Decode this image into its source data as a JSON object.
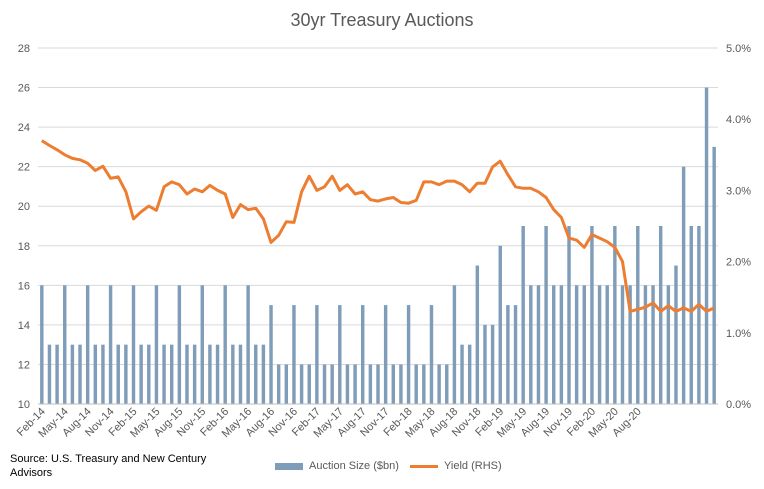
{
  "chart_data": {
    "type": "bar",
    "title": "30yr Treasury Auctions",
    "source": "Source: U.S. Treasury and New Century Advisors",
    "x_tick_labels": [
      "Feb-14",
      "May-14",
      "Aug-14",
      "Nov-14",
      "Feb-15",
      "May-15",
      "Aug-15",
      "Nov-15",
      "Feb-16",
      "May-16",
      "Aug-16",
      "Nov-16",
      "Feb-17",
      "May-17",
      "Aug-17",
      "Nov-17",
      "Feb-18",
      "May-18",
      "Aug-18",
      "Nov-18",
      "Feb-19",
      "May-19",
      "Aug-19",
      "Nov-19",
      "Feb-20",
      "May-20",
      "Aug-20"
    ],
    "y_left": {
      "ylim": [
        10,
        28
      ],
      "ticks": [
        "10",
        "12",
        "14",
        "16",
        "18",
        "20",
        "22",
        "24",
        "26",
        "28"
      ]
    },
    "y_right": {
      "ylim": [
        0.0,
        5.0
      ],
      "ticks": [
        "0.0%",
        "1.0%",
        "2.0%",
        "3.0%",
        "4.0%",
        "5.0%"
      ]
    },
    "series": [
      {
        "name": "Auction Size ($bn)",
        "type": "bar",
        "axis": "left",
        "color": "#7f9db9",
        "values": [
          16,
          13,
          13,
          16,
          13,
          13,
          16,
          13,
          13,
          16,
          13,
          13,
          16,
          13,
          13,
          16,
          13,
          13,
          16,
          13,
          13,
          16,
          13,
          13,
          16,
          13,
          13,
          16,
          13,
          13,
          15,
          12,
          12,
          15,
          12,
          12,
          15,
          12,
          12,
          15,
          12,
          12,
          15,
          12,
          12,
          15,
          12,
          12,
          15,
          12,
          12,
          15,
          12,
          12,
          16,
          13,
          13,
          17,
          14,
          14,
          18,
          15,
          15,
          19,
          16,
          16,
          19,
          16,
          16,
          19,
          16,
          16,
          19,
          16,
          16,
          19,
          16,
          16,
          19,
          16,
          16,
          19,
          16,
          17,
          22,
          19,
          19,
          26,
          23
        ]
      },
      {
        "name": "Yield (RHS)",
        "type": "line",
        "axis": "right",
        "color": "#ed7d31",
        "values": [
          3.7,
          3.63,
          3.57,
          3.5,
          3.45,
          3.43,
          3.38,
          3.28,
          3.34,
          3.17,
          3.19,
          2.98,
          2.6,
          2.7,
          2.78,
          2.72,
          3.05,
          3.12,
          3.08,
          2.95,
          3.02,
          2.98,
          3.07,
          3.0,
          2.95,
          2.62,
          2.8,
          2.73,
          2.75,
          2.6,
          2.27,
          2.37,
          2.56,
          2.55,
          2.98,
          3.2,
          3.0,
          3.05,
          3.2,
          3.0,
          3.08,
          2.95,
          2.98,
          2.87,
          2.85,
          2.88,
          2.9,
          2.83,
          2.82,
          2.86,
          3.12,
          3.12,
          3.08,
          3.13,
          3.13,
          3.08,
          2.98,
          3.1,
          3.1,
          3.33,
          3.41,
          3.22,
          3.05,
          3.03,
          3.03,
          2.98,
          2.9,
          2.73,
          2.62,
          2.33,
          2.3,
          2.2,
          2.38,
          2.33,
          2.28,
          2.2,
          2.0,
          1.3,
          1.33,
          1.36,
          1.42,
          1.3,
          1.38,
          1.3,
          1.35,
          1.3,
          1.4,
          1.3,
          1.35
        ]
      }
    ],
    "legend": {
      "placement": "bottom"
    }
  }
}
